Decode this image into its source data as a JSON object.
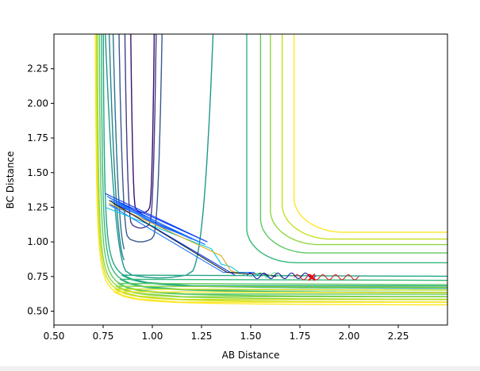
{
  "chart_data": {
    "type": "contour",
    "title": "",
    "xlabel": "AB Distance",
    "ylabel": "BC Distance",
    "xlim": [
      0.5,
      2.5
    ],
    "ylim": [
      0.4,
      2.5
    ],
    "xticks": [
      {
        "value": 0.5,
        "label": "0.50"
      },
      {
        "value": 0.75,
        "label": "0.75"
      },
      {
        "value": 1.0,
        "label": "1.00"
      },
      {
        "value": 1.25,
        "label": "1.25"
      },
      {
        "value": 1.5,
        "label": "1.50"
      },
      {
        "value": 1.75,
        "label": "1.75"
      },
      {
        "value": 2.0,
        "label": "2.00"
      },
      {
        "value": 2.25,
        "label": "2.25"
      }
    ],
    "yticks": [
      {
        "value": 0.5,
        "label": "0.50"
      },
      {
        "value": 0.75,
        "label": "0.75"
      },
      {
        "value": 1.0,
        "label": "1.00"
      },
      {
        "value": 1.25,
        "label": "1.25"
      },
      {
        "value": 1.5,
        "label": "1.50"
      },
      {
        "value": 1.75,
        "label": "1.75"
      },
      {
        "value": 2.0,
        "label": "2.00"
      },
      {
        "value": 2.25,
        "label": "2.25"
      }
    ],
    "grid": false,
    "contour_levels": [
      {
        "color": "#3b0f70",
        "x_left": 0.89,
        "y_bottom": null,
        "y_min": 1.23
      },
      {
        "color": "#433e85",
        "x_left": 0.86,
        "y_bottom": null,
        "y_min": 1.12
      },
      {
        "color": "#38598c",
        "x_left": 0.83,
        "y_bottom": 0.98,
        "y_min": 1.02
      },
      {
        "color": "#2c728e",
        "x_left": 0.8,
        "y_bottom": 0.91,
        "y_min": 0.92
      },
      {
        "color": "#25858e",
        "x_left": 0.78,
        "y_bottom": 0.84,
        "y_min": 0.84
      },
      {
        "color": "#1f988b",
        "x_left": 0.76,
        "y_bottom": 0.76,
        "y_min": 0.76
      },
      {
        "color": "#21a685",
        "x_left": 0.745,
        "y_bottom": 0.66,
        "y_min": 0.66
      },
      {
        "color": "#35b779",
        "x_left": 0.735,
        "y_bottom": 0.63,
        "y_min": 0.63
      },
      {
        "color": "#5ec962",
        "x_left": 0.725,
        "y_bottom": 0.6,
        "y_min": 0.6
      },
      {
        "color": "#90d743",
        "x_left": 0.715,
        "y_bottom": 0.58,
        "y_min": 0.58
      },
      {
        "color": "#c8e020",
        "x_left": 0.71,
        "y_bottom": 0.56,
        "y_min": 0.56
      },
      {
        "color": "#fde725",
        "x_left": 0.705,
        "y_bottom": 0.54,
        "y_min": 0.54
      }
    ],
    "upper_right_contours": [
      {
        "color": "#35b779",
        "x_corner": 1.48,
        "y_corner": 0.85
      },
      {
        "color": "#5ec962",
        "x_corner": 1.55,
        "y_corner": 0.92
      },
      {
        "color": "#90d743",
        "x_corner": 1.6,
        "y_corner": 0.98
      },
      {
        "color": "#c8e020",
        "x_corner": 1.66,
        "y_corner": 1.02
      },
      {
        "color": "#fde725",
        "x_corner": 1.72,
        "y_corner": 1.07
      }
    ],
    "trajectories": [
      {
        "color": "#0b3cf5",
        "points": [
          [
            0.76,
            1.35
          ],
          [
            1.28,
            1.0
          ],
          [
            0.78,
            1.32
          ],
          [
            1.2,
            1.02
          ],
          [
            0.8,
            1.28
          ],
          [
            1.42,
            0.76
          ]
        ]
      },
      {
        "color": "#1f77ff",
        "points": [
          [
            0.77,
            1.33
          ],
          [
            1.12,
            1.05
          ],
          [
            0.79,
            1.3
          ],
          [
            1.27,
            0.98
          ],
          [
            0.78,
            1.27
          ],
          [
            1.36,
            0.78
          ],
          [
            1.45,
            0.78
          ],
          [
            1.52,
            0.78
          ]
        ]
      },
      {
        "color": "#00c8e0",
        "points": [
          [
            0.76,
            1.25
          ],
          [
            1.3,
            0.95
          ],
          [
            1.35,
            0.84
          ],
          [
            1.4,
            0.82
          ],
          [
            1.45,
            0.77
          ],
          [
            1.5,
            0.75
          ],
          [
            1.55,
            0.77
          ],
          [
            1.6,
            0.74
          ]
        ]
      },
      {
        "color": "#e6a817",
        "points": [
          [
            0.78,
            1.28
          ],
          [
            1.35,
            0.9
          ],
          [
            1.4,
            0.79
          ],
          [
            1.45,
            0.77
          ]
        ]
      },
      {
        "color": "#222222",
        "points": [
          [
            0.78,
            1.3
          ],
          [
            1.38,
            0.78
          ],
          [
            1.48,
            0.77
          ],
          [
            1.55,
            0.77
          ],
          [
            1.63,
            0.75
          ]
        ]
      },
      {
        "color": "#7fe0a0",
        "points": [
          [
            1.45,
            0.77
          ],
          [
            1.5,
            0.75
          ],
          [
            1.55,
            0.78
          ],
          [
            1.58,
            0.74
          ],
          [
            1.62,
            0.78
          ],
          [
            1.66,
            0.74
          ]
        ]
      },
      {
        "color": "#1a1aa0",
        "oscillating": true,
        "x_start": 1.48,
        "x_end": 1.83,
        "y_center": 0.755,
        "amplitude": 0.02,
        "period": 0.07
      },
      {
        "color": "#d62728",
        "oscillating": true,
        "x_start": 1.72,
        "x_end": 2.05,
        "y_center": 0.745,
        "amplitude": 0.018,
        "period": 0.065
      }
    ],
    "marker": {
      "type": "x",
      "color": "#ff0000",
      "x": 1.81,
      "y": 0.745
    }
  }
}
